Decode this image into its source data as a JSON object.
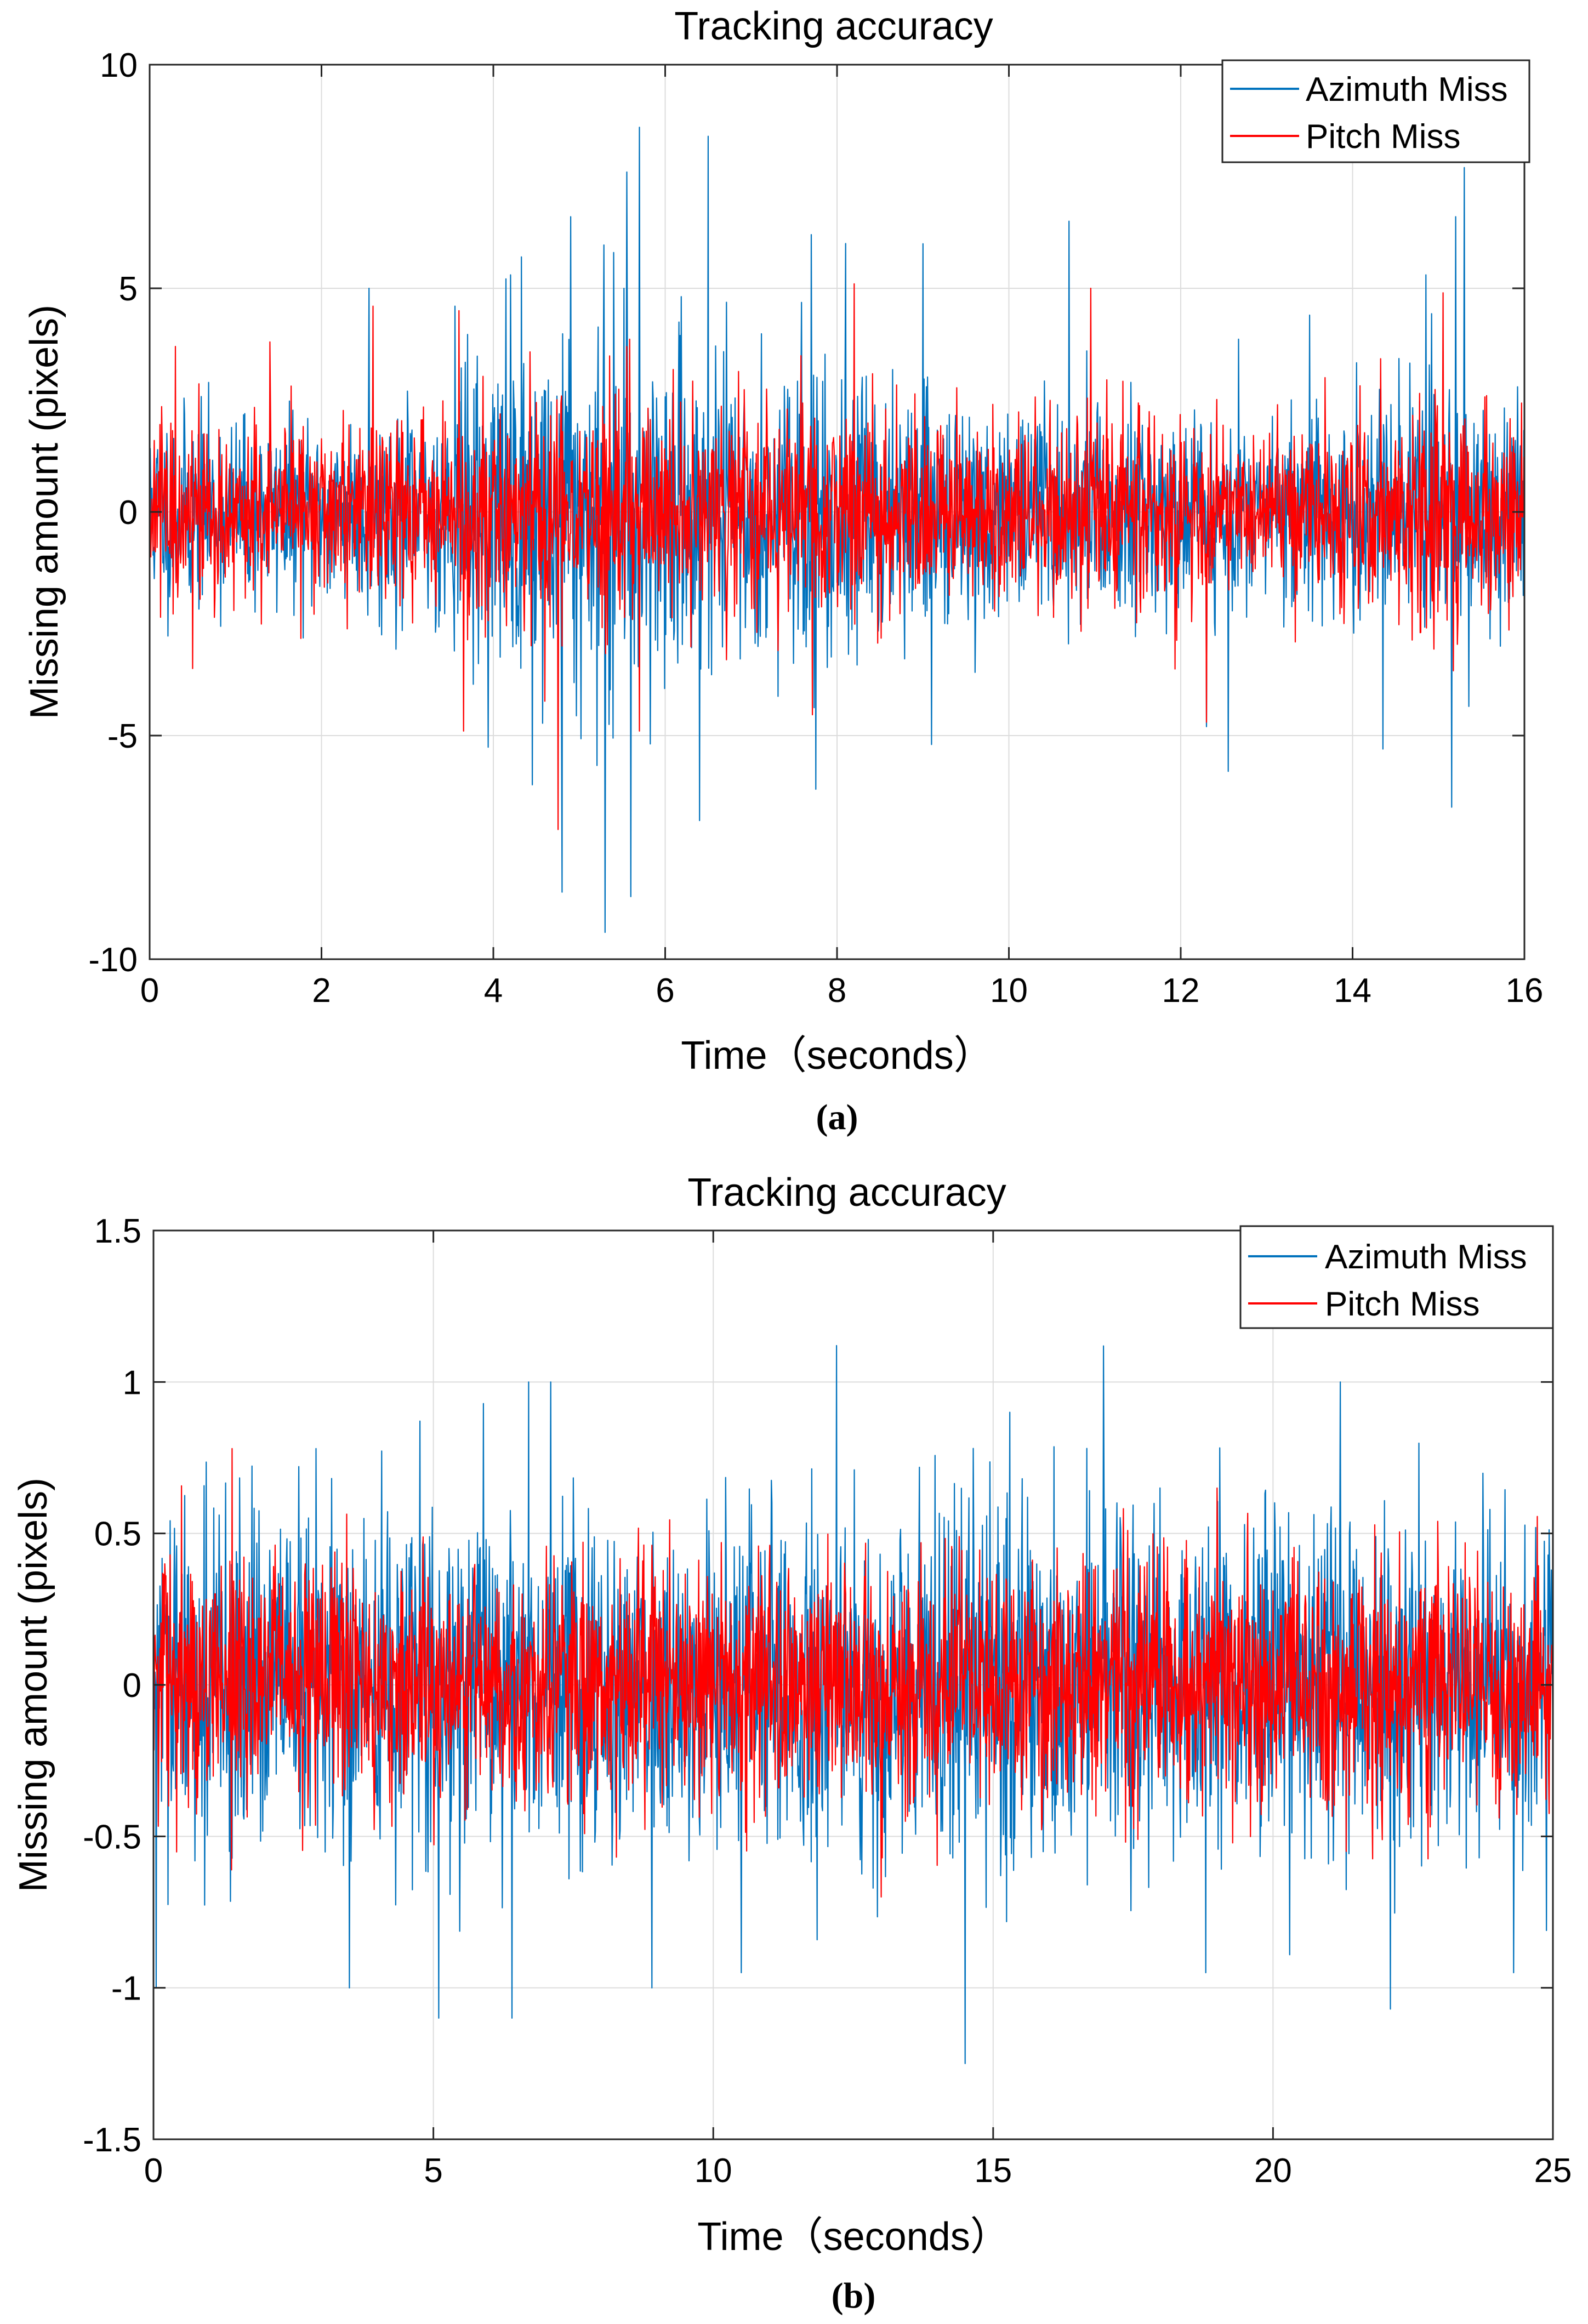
{
  "chart_data": [
    {
      "type": "line",
      "panel_caption": "(a)",
      "title": "Tracking accuracy",
      "xlabel": "Time（seconds）",
      "ylabel": "Missing amount (pixels)",
      "xlim": [
        0,
        16
      ],
      "ylim": [
        -10,
        10
      ],
      "x_ticks": [
        0,
        2,
        4,
        6,
        8,
        10,
        12,
        14,
        16
      ],
      "y_ticks": [
        -10,
        -5,
        0,
        5,
        10
      ],
      "x_tick_labels": [
        "0",
        "2",
        "4",
        "6",
        "8",
        "10",
        "12",
        "14",
        "16"
      ],
      "y_tick_labels": [
        "-10",
        "-5",
        "0",
        "5",
        "10"
      ],
      "grid": true,
      "legend_position": "top-right",
      "series": [
        {
          "name": "Azimuth Miss",
          "color": "#0072BD",
          "noise_profile": [
            [
              0,
              1.1
            ],
            [
              0.5,
              1.1
            ],
            [
              1,
              1.0
            ],
            [
              2,
              1.0
            ],
            [
              2.6,
              1.1
            ],
            [
              3.3,
              1.2
            ],
            [
              4,
              1.8
            ],
            [
              4.8,
              2.2
            ],
            [
              5.5,
              2.3
            ],
            [
              6,
              1.8
            ],
            [
              6.5,
              1.6
            ],
            [
              7,
              1.4
            ],
            [
              8,
              1.6
            ],
            [
              9,
              1.3
            ],
            [
              10,
              1.1
            ],
            [
              11,
              1.2
            ],
            [
              12,
              1.1
            ],
            [
              12.5,
              1.1
            ],
            [
              13,
              0.9
            ],
            [
              14,
              1.2
            ],
            [
              15,
              1.5
            ],
            [
              15.5,
              1.3
            ],
            [
              16,
              1.2
            ]
          ],
          "peaks": [
            [
              2.55,
              5.0
            ],
            [
              3.55,
              4.6
            ],
            [
              4.2,
              5.3
            ],
            [
              4.45,
              -6.1
            ],
            [
              4.8,
              -8.5
            ],
            [
              4.9,
              6.6
            ],
            [
              5.3,
              -9.4
            ],
            [
              5.4,
              5.8
            ],
            [
              5.55,
              7.6
            ],
            [
              5.6,
              -8.6
            ],
            [
              5.7,
              8.6
            ],
            [
              6.4,
              -6.9
            ],
            [
              6.5,
              8.4
            ],
            [
              7.7,
              6.2
            ],
            [
              7.75,
              -6.2
            ],
            [
              8.1,
              6.0
            ],
            [
              9.1,
              -5.2
            ],
            [
              10.7,
              6.5
            ],
            [
              12.3,
              -4.8
            ],
            [
              12.55,
              -5.8
            ],
            [
              13.5,
              4.4
            ],
            [
              14.35,
              -5.3
            ],
            [
              14.85,
              5.3
            ],
            [
              15.2,
              6.6
            ],
            [
              15.15,
              -6.6
            ],
            [
              15.3,
              7.7
            ]
          ]
        },
        {
          "name": "Pitch Miss",
          "color": "#FF0000",
          "noise_profile": [
            [
              0,
              1.0
            ],
            [
              1,
              1.0
            ],
            [
              2,
              1.0
            ],
            [
              2.6,
              1.0
            ],
            [
              3.3,
              1.1
            ],
            [
              4,
              1.2
            ],
            [
              5,
              1.3
            ],
            [
              6,
              1.2
            ],
            [
              7,
              1.3
            ],
            [
              8,
              1.2
            ],
            [
              9,
              1.0
            ],
            [
              10,
              1.0
            ],
            [
              11,
              1.1
            ],
            [
              12,
              1.0
            ],
            [
              13,
              0.8
            ],
            [
              14,
              1.1
            ],
            [
              15,
              1.3
            ],
            [
              16,
              1.0
            ]
          ],
          "peaks": [
            [
              0.3,
              3.7
            ],
            [
              0.5,
              -3.5
            ],
            [
              1.4,
              3.8
            ],
            [
              2.6,
              -4.3
            ],
            [
              2.6,
              4.6
            ],
            [
              3.6,
              4.5
            ],
            [
              3.65,
              -4.9
            ],
            [
              4.75,
              -7.1
            ],
            [
              5.7,
              -4.9
            ],
            [
              8.2,
              5.1
            ],
            [
              10.95,
              5.0
            ],
            [
              12.3,
              -4.7
            ],
            [
              15.05,
              4.9
            ]
          ]
        }
      ]
    },
    {
      "type": "line",
      "panel_caption": "(b)",
      "title": "Tracking accuracy",
      "xlabel": "Time（seconds）",
      "ylabel": "Missing amount (pixels)",
      "xlim": [
        0,
        25
      ],
      "ylim": [
        -1.5,
        1.5
      ],
      "x_ticks": [
        0,
        5,
        10,
        15,
        20,
        25
      ],
      "y_ticks": [
        -1.5,
        -1,
        -0.5,
        0,
        0.5,
        1,
        1.5
      ],
      "x_tick_labels": [
        "0",
        "5",
        "10",
        "15",
        "20",
        "25"
      ],
      "y_tick_labels": [
        "-1.5",
        "-1",
        "-0.5",
        "0",
        "0.5",
        "1",
        "1.5"
      ],
      "grid": true,
      "legend_position": "top-right",
      "series": [
        {
          "name": "Azimuth Miss",
          "color": "#0072BD",
          "noise_profile": [
            [
              0,
              0.28
            ],
            [
              5,
              0.27
            ],
            [
              10,
              0.28
            ],
            [
              15,
              0.28
            ],
            [
              20,
              0.27
            ],
            [
              25,
              0.28
            ]
          ],
          "peaks": [
            [
              0.05,
              -1.0
            ],
            [
              2.9,
              0.78
            ],
            [
              3.5,
              -1.0
            ],
            [
              5.1,
              -1.1
            ],
            [
              6.4,
              -1.1
            ],
            [
              6.7,
              1.0
            ],
            [
              7.1,
              1.0
            ],
            [
              8.9,
              -1.0
            ],
            [
              10.5,
              -0.95
            ],
            [
              12.2,
              1.12
            ],
            [
              14.5,
              -1.25
            ],
            [
              15.3,
              0.9
            ],
            [
              18.8,
              -0.95
            ],
            [
              21.2,
              1.0
            ],
            [
              22.1,
              -1.07
            ],
            [
              24.3,
              -0.95
            ]
          ]
        },
        {
          "name": "Pitch Miss",
          "color": "#FF0000",
          "noise_profile": [
            [
              0,
              0.2
            ],
            [
              10,
              0.2
            ],
            [
              20,
              0.2
            ],
            [
              25,
              0.2
            ]
          ],
          "peaks": [
            [
              1.4,
              0.78
            ],
            [
              13.0,
              -0.7
            ],
            [
              19.0,
              0.65
            ]
          ]
        }
      ]
    }
  ]
}
